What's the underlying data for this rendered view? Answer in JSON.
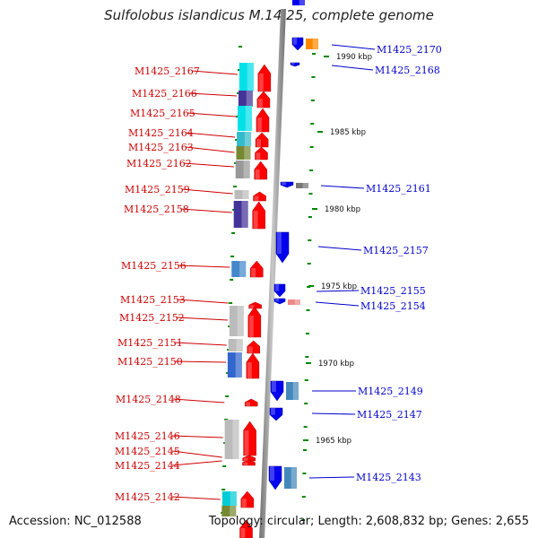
{
  "title": "Sulfolobus islandicus M.14.25, complete genome",
  "accession": "Accession: NC_012588",
  "summary": "Topology: circular; Length: 2,608,832 bp; Genes: 2,655",
  "colors": {
    "forward_label": "#cc0000",
    "reverse_label": "#0000cc",
    "forward_arrow": "#ff0000",
    "reverse_arrow": "#0000ee",
    "axis": "#888888",
    "tick": "#008800"
  },
  "scale_labels": [
    {
      "text": "1990 kbp"
    },
    {
      "text": "1985 kbp"
    },
    {
      "text": "1980 kbp"
    },
    {
      "text": "1975 kbp"
    },
    {
      "text": "1970 kbp"
    },
    {
      "text": "1965 kbp"
    }
  ],
  "genes_forward": [
    {
      "label": "M1425_2167"
    },
    {
      "label": "M1425_2166"
    },
    {
      "label": "M1425_2165"
    },
    {
      "label": "M1425_2164"
    },
    {
      "label": "M1425_2163"
    },
    {
      "label": "M1425_2162"
    },
    {
      "label": "M1425_2159"
    },
    {
      "label": "M1425_2158"
    },
    {
      "label": "M1425_2156"
    },
    {
      "label": "M1425_2153"
    },
    {
      "label": "M1425_2152"
    },
    {
      "label": "M1425_2151"
    },
    {
      "label": "M1425_2150"
    },
    {
      "label": "M1425_2148"
    },
    {
      "label": "M1425_2146"
    },
    {
      "label": "M1425_2145"
    },
    {
      "label": "M1425_2144"
    },
    {
      "label": "M1425_2142"
    }
  ],
  "genes_reverse": [
    {
      "label": "M1425_2170"
    },
    {
      "label": "M1425_2168"
    },
    {
      "label": "M1425_2161"
    },
    {
      "label": "M1425_2157"
    },
    {
      "label": "M1425_2155"
    },
    {
      "label": "M1425_2154"
    },
    {
      "label": "M1425_2149"
    },
    {
      "label": "M1425_2147"
    },
    {
      "label": "M1425_2143"
    }
  ]
}
